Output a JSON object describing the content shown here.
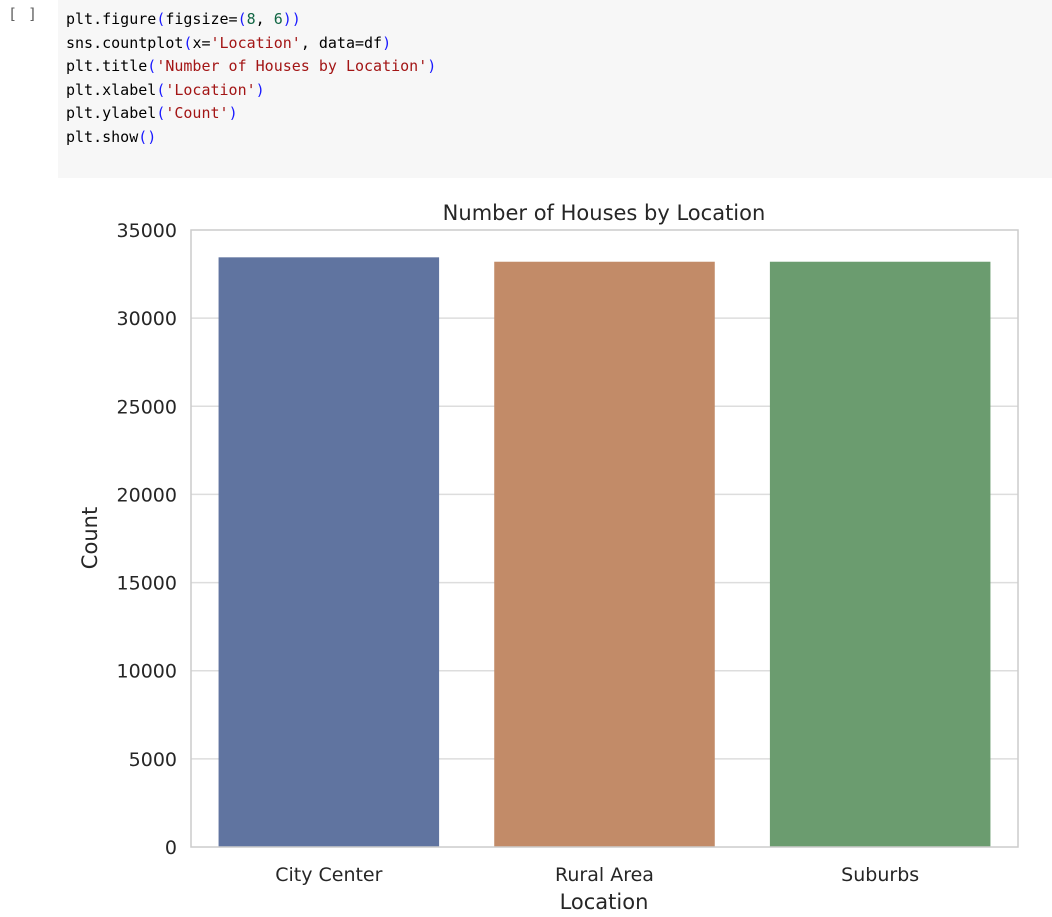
{
  "cell": {
    "run_marker": "[ ]",
    "code": [
      {
        "tokens": [
          {
            "t": "plt.figure",
            "c": ""
          },
          {
            "t": "(",
            "c": "paren"
          },
          {
            "t": "figsize=",
            "c": ""
          },
          {
            "t": "(",
            "c": "paren"
          },
          {
            "t": "8",
            "c": "num"
          },
          {
            "t": ", ",
            "c": ""
          },
          {
            "t": "6",
            "c": "num"
          },
          {
            "t": ")",
            "c": "paren"
          },
          {
            "t": ")",
            "c": "paren"
          }
        ]
      },
      {
        "tokens": [
          {
            "t": "sns.countplot",
            "c": ""
          },
          {
            "t": "(",
            "c": "paren"
          },
          {
            "t": "x=",
            "c": ""
          },
          {
            "t": "'Location'",
            "c": "str"
          },
          {
            "t": ", data=df",
            "c": ""
          },
          {
            "t": ")",
            "c": "paren"
          }
        ]
      },
      {
        "tokens": [
          {
            "t": "plt.title",
            "c": ""
          },
          {
            "t": "(",
            "c": "paren"
          },
          {
            "t": "'Number of Houses by Location'",
            "c": "str"
          },
          {
            "t": ")",
            "c": "paren"
          }
        ]
      },
      {
        "tokens": [
          {
            "t": "plt.xlabel",
            "c": ""
          },
          {
            "t": "(",
            "c": "paren"
          },
          {
            "t": "'Location'",
            "c": "str"
          },
          {
            "t": ")",
            "c": "paren"
          }
        ]
      },
      {
        "tokens": [
          {
            "t": "plt.ylabel",
            "c": ""
          },
          {
            "t": "(",
            "c": "paren"
          },
          {
            "t": "'Count'",
            "c": "str"
          },
          {
            "t": ")",
            "c": "paren"
          }
        ]
      },
      {
        "tokens": [
          {
            "t": "plt.show",
            "c": ""
          },
          {
            "t": "(",
            "c": "paren"
          },
          {
            "t": ")",
            "c": "paren"
          }
        ]
      }
    ]
  },
  "colors": {
    "code_bg": "#f7f7f7",
    "string": "#a31515",
    "number": "#116644",
    "paren": "#1a1aff"
  },
  "chart_data": {
    "type": "bar",
    "title": "Number of Houses by Location",
    "xlabel": "Location",
    "ylabel": "Count",
    "categories": [
      "City Center",
      "Rural Area",
      "Suburbs"
    ],
    "values": [
      33450,
      33200,
      33200
    ],
    "colors": [
      "#6074a0",
      "#c28b68",
      "#6b9c6f"
    ],
    "ylim": [
      0,
      35000
    ],
    "yticks": [
      0,
      5000,
      10000,
      15000,
      20000,
      25000,
      30000,
      35000
    ],
    "grid": true
  }
}
